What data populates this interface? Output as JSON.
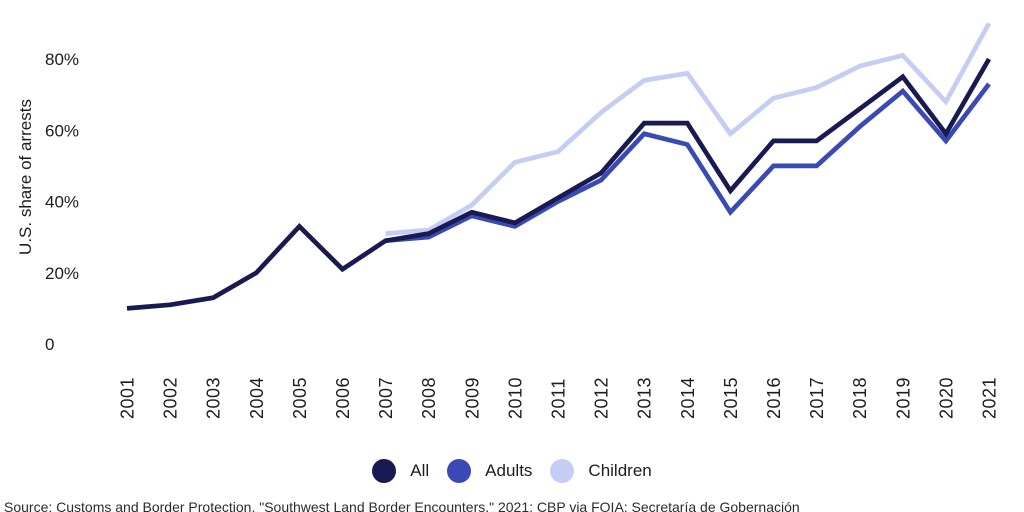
{
  "chart_data": {
    "type": "line",
    "title": "",
    "ylabel": "U.S. share of arrests",
    "xlabel": "",
    "grid": false,
    "legend_position": "bottom",
    "ylim": [
      0,
      95
    ],
    "y_ticks": [
      {
        "label": "80%",
        "value": 80
      },
      {
        "label": "60%",
        "value": 60
      },
      {
        "label": "40%",
        "value": 40
      },
      {
        "label": "20%",
        "value": 20
      },
      {
        "label": "0",
        "value": 0
      }
    ],
    "x_labels": [
      "2001",
      "2002",
      "2003",
      "2004",
      "2005",
      "2006",
      "2007",
      "2008",
      "2009",
      "2010",
      "2011",
      "2012",
      "2013",
      "2014",
      "2015",
      "2016",
      "2017",
      "2018",
      "2019",
      "2020",
      "2021"
    ],
    "series": [
      {
        "name": "All",
        "color": "#191a52",
        "values": [
          10,
          11,
          13,
          20,
          33,
          21,
          29,
          31,
          37,
          34,
          41,
          48,
          62,
          62,
          43,
          57,
          57,
          66,
          75,
          59,
          80
        ]
      },
      {
        "name": "Adults",
        "color": "#3a49b5",
        "values": [
          null,
          null,
          null,
          null,
          null,
          null,
          29,
          30,
          36,
          33,
          40,
          46,
          59,
          56,
          37,
          50,
          50,
          61,
          71,
          57,
          73
        ]
      },
      {
        "name": "Children",
        "color": "#c5cdf5",
        "values": [
          null,
          null,
          null,
          null,
          null,
          null,
          31,
          32,
          39,
          51,
          54,
          65,
          74,
          76,
          59,
          69,
          72,
          78,
          81,
          68,
          90
        ]
      }
    ]
  },
  "source_note": "Source: Customs and Border Protection, \"Southwest Land Border Encounters,\" 2021; CBP via FOIA; Secretaría de Gobernación",
  "colors": {
    "background": "#ffffff",
    "text": "#1d1d1d"
  }
}
